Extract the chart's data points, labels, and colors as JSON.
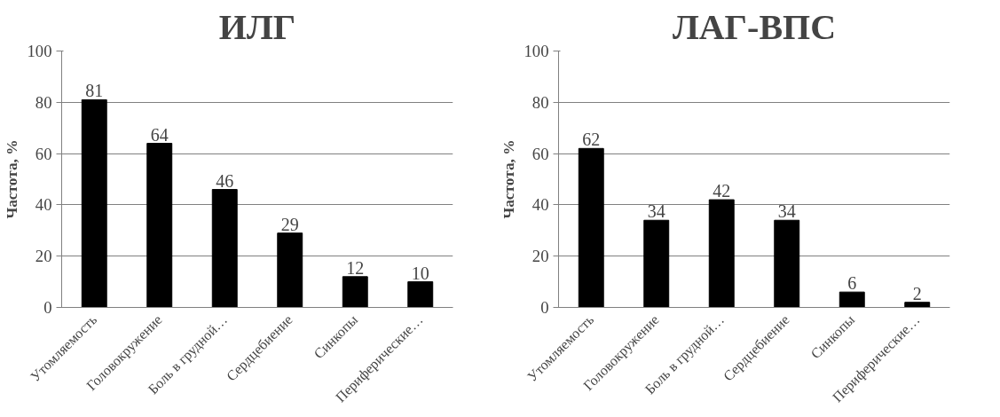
{
  "chart_data": [
    {
      "type": "bar",
      "title": "ИЛГ",
      "ylabel": "Частота, %",
      "categories": [
        "Утомляемость",
        "Головокружение",
        "Боль в грудной…",
        "Сердцебиение",
        "Синкопы",
        "Периферические…"
      ],
      "values": [
        81,
        64,
        46,
        29,
        12,
        10
      ],
      "color": "#000000",
      "ylim": [
        0,
        100
      ],
      "yticks": [
        0,
        20,
        40,
        60,
        80,
        100
      ],
      "grid": "y",
      "data_labels": true
    },
    {
      "type": "bar",
      "title": "ЛАГ-ВПС",
      "ylabel": "Частота, %",
      "categories": [
        "Утомляемость",
        "Головокружение",
        "Боль в грудной…",
        "Сердцебиение",
        "Синкопы",
        "Периферические…"
      ],
      "values": [
        62,
        34,
        42,
        34,
        6,
        2
      ],
      "color": "#000000",
      "ylim": [
        0,
        100
      ],
      "yticks": [
        0,
        20,
        40,
        60,
        80,
        100
      ],
      "grid": "y",
      "data_labels": true
    }
  ]
}
